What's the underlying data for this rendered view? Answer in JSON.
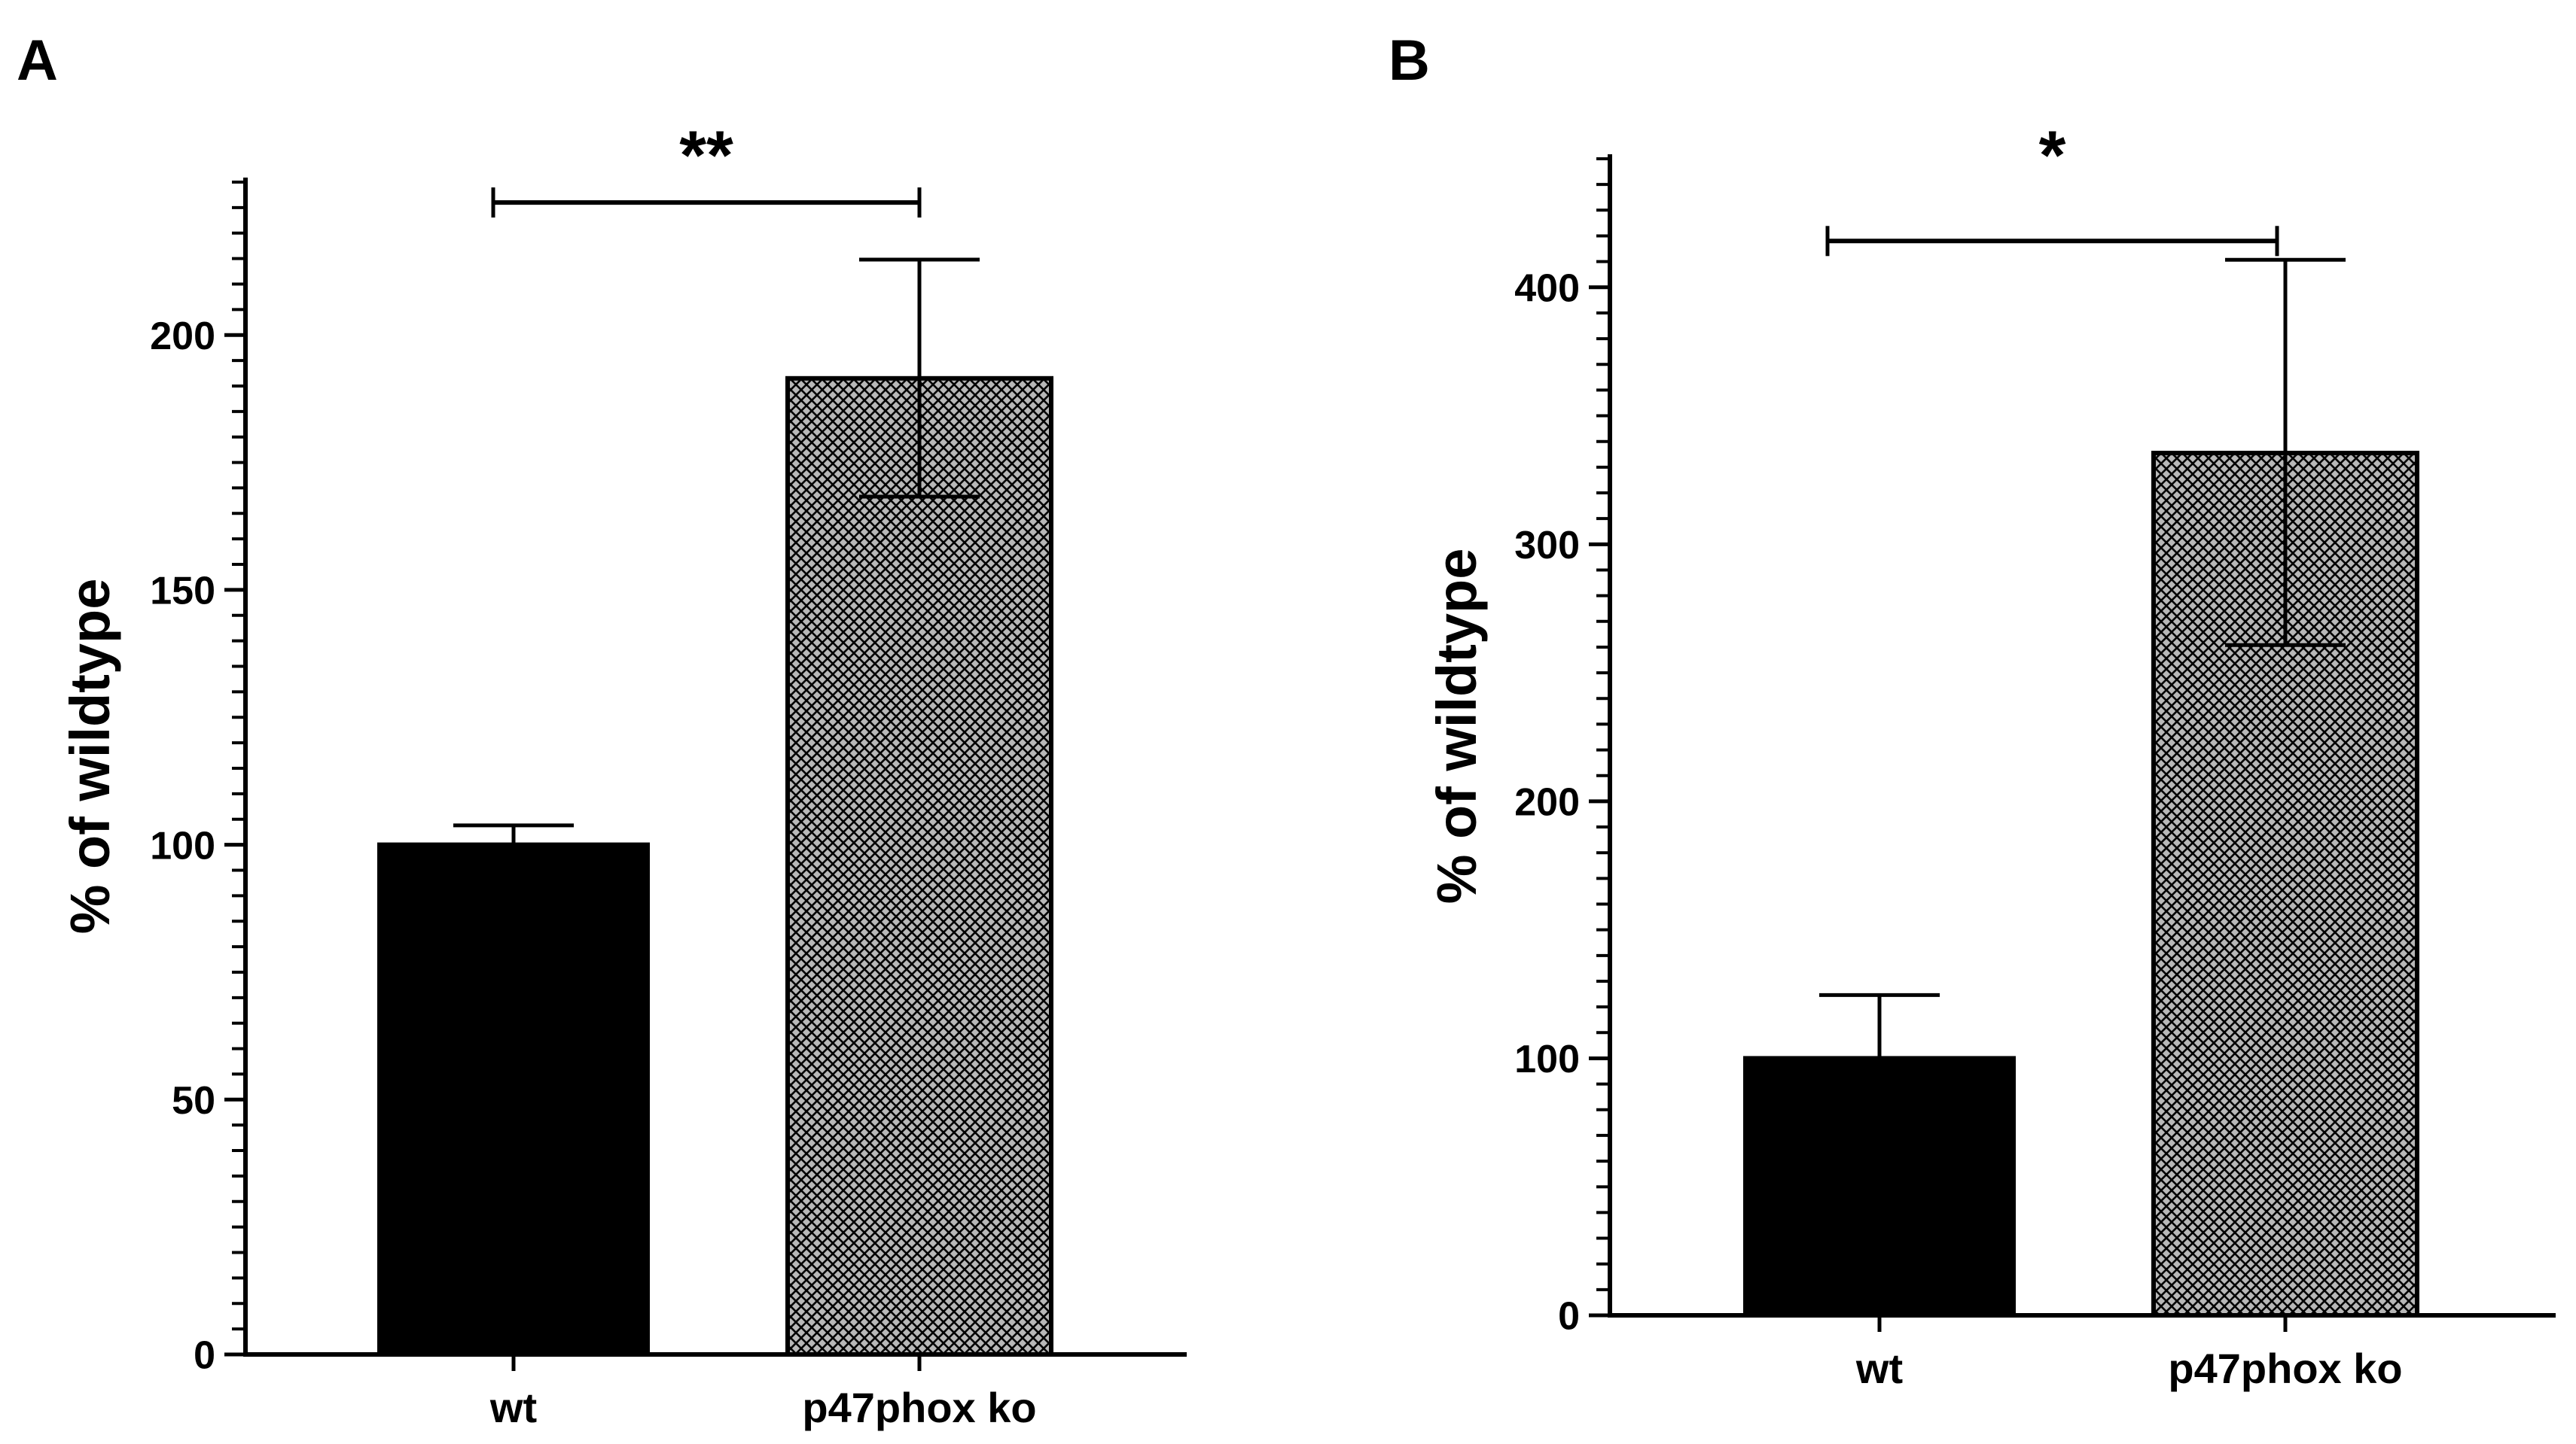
{
  "colors": {
    "wt_fill": "#000000",
    "ko_fill": "#b8b8b8",
    "ko_hatch": "#000000",
    "axis": "#000000"
  },
  "chart_data": [
    {
      "panel_label": "A",
      "type": "bar",
      "categories": [
        "wt",
        "p47phox ko"
      ],
      "values": [
        100,
        191.5
      ],
      "error_upper": [
        103.8,
        214.8
      ],
      "error_lower": [
        null,
        168.3
      ],
      "ylabel": "% of wildtype",
      "xlabel": "",
      "ylim": [
        0,
        230
      ],
      "yticks": [
        0,
        50,
        100,
        150,
        200
      ],
      "minor_tick_step": 5,
      "significance": {
        "label": "**",
        "from": "wt",
        "to": "p47phox ko",
        "y": 226
      }
    },
    {
      "panel_label": "B",
      "type": "bar",
      "categories": [
        "wt",
        "p47phox ko"
      ],
      "values": [
        100,
        335.5
      ],
      "error_upper": [
        124.6,
        410.7
      ],
      "error_lower": [
        null,
        260.8
      ],
      "ylabel": "% of wildtype",
      "xlabel": "",
      "ylim": [
        0,
        450
      ],
      "yticks": [
        0,
        100,
        200,
        300,
        400
      ],
      "minor_tick_step": 10,
      "significance": {
        "label": "*",
        "from": "wt",
        "to": "p47phox ko",
        "y": 418
      }
    }
  ]
}
